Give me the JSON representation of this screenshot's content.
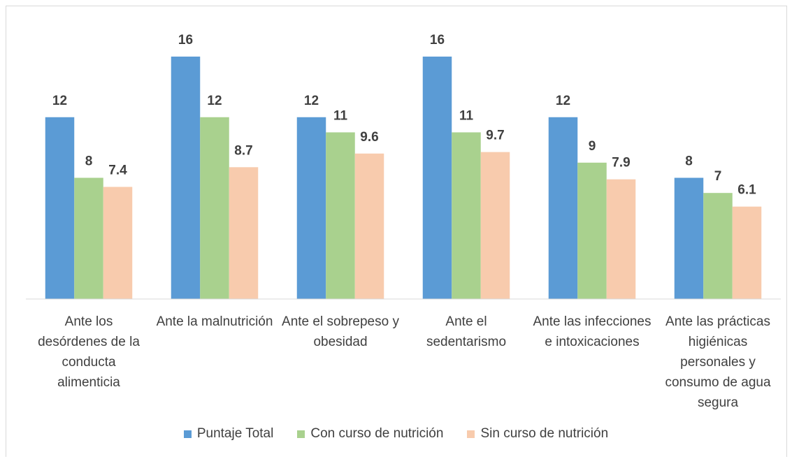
{
  "chart_data": {
    "type": "bar",
    "categories": [
      "Ante los desórdenes de la conducta alimenticia",
      "Ante la malnutrición",
      "Ante el sobrepeso y obesidad",
      "Ante el sedentarismo",
      "Ante las infecciones e intoxicaciones",
      "Ante las prácticas higiénicas personales y consumo de agua segura"
    ],
    "series": [
      {
        "name": "Puntaje Total",
        "color": "#5b9bd5",
        "values": [
          12,
          16,
          12,
          16,
          12,
          8
        ]
      },
      {
        "name": "Con curso de nutrición",
        "color": "#a9d18e",
        "values": [
          8,
          12,
          11,
          11,
          9,
          7
        ]
      },
      {
        "name": "Sin curso de nutrición",
        "color": "#f8cbad",
        "values": [
          7.4,
          8.7,
          9.6,
          9.7,
          7.9,
          6.1
        ]
      }
    ],
    "legend": "bottom"
  }
}
